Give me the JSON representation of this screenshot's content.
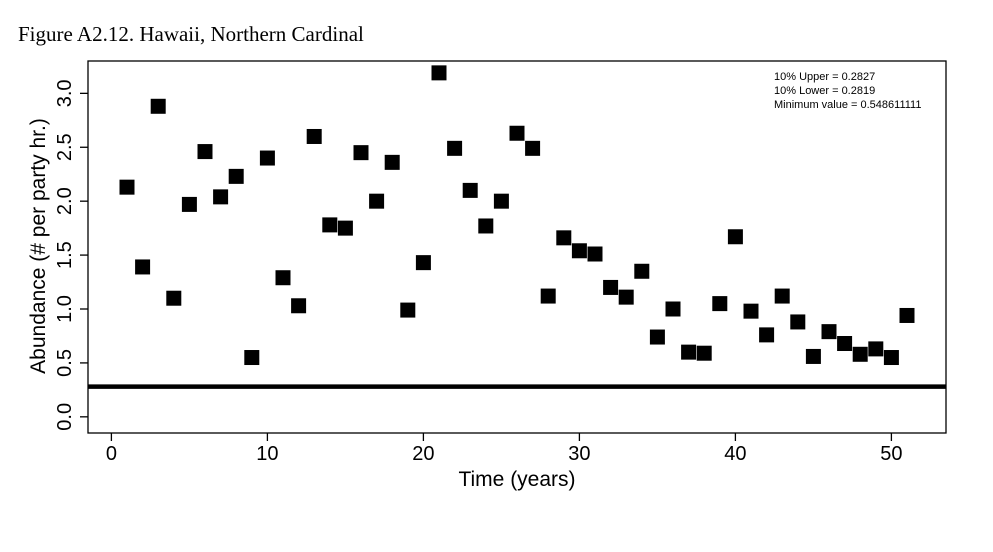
{
  "figure": {
    "title": "Figure A2.12. Hawaii, Northern Cardinal"
  },
  "chart_data": {
    "type": "scatter",
    "xlabel": "Time (years)",
    "ylabel": "Abundance (# per party hr.)",
    "xlim": [
      -1.5,
      53.5
    ],
    "ylim": [
      -0.15,
      3.3
    ],
    "x_ticks": [
      0,
      10,
      20,
      30,
      40,
      50
    ],
    "y_ticks": [
      0.0,
      0.5,
      1.0,
      1.5,
      2.0,
      2.5,
      3.0
    ],
    "x_tick_labels": [
      "0",
      "10",
      "20",
      "30",
      "40",
      "50"
    ],
    "y_tick_labels": [
      "0.0",
      "0.5",
      "1.0",
      "1.5",
      "2.0",
      "2.5",
      "3.0"
    ],
    "grid": false,
    "marker": "square",
    "marker_color": "#000000",
    "threshold_line": {
      "y": 0.28
    },
    "legend": {
      "placement": "top-right",
      "lines": [
        "10% Upper =  0.2827",
        "10% Lower =  0.2819",
        "Minimum value =  0.548611111"
      ]
    },
    "points": [
      {
        "x": 1,
        "y": 2.13
      },
      {
        "x": 2,
        "y": 1.39
      },
      {
        "x": 3,
        "y": 2.88
      },
      {
        "x": 4,
        "y": 1.1
      },
      {
        "x": 5,
        "y": 1.97
      },
      {
        "x": 6,
        "y": 2.46
      },
      {
        "x": 7,
        "y": 2.04
      },
      {
        "x": 8,
        "y": 2.23
      },
      {
        "x": 9,
        "y": 0.55
      },
      {
        "x": 10,
        "y": 2.4
      },
      {
        "x": 11,
        "y": 1.29
      },
      {
        "x": 12,
        "y": 1.03
      },
      {
        "x": 13,
        "y": 2.6
      },
      {
        "x": 14,
        "y": 1.78
      },
      {
        "x": 15,
        "y": 1.75
      },
      {
        "x": 16,
        "y": 2.45
      },
      {
        "x": 17,
        "y": 2.0
      },
      {
        "x": 18,
        "y": 2.36
      },
      {
        "x": 19,
        "y": 0.99
      },
      {
        "x": 20,
        "y": 1.43
      },
      {
        "x": 21,
        "y": 3.19
      },
      {
        "x": 22,
        "y": 2.49
      },
      {
        "x": 23,
        "y": 2.1
      },
      {
        "x": 24,
        "y": 1.77
      },
      {
        "x": 25,
        "y": 2.0
      },
      {
        "x": 26,
        "y": 2.63
      },
      {
        "x": 27,
        "y": 2.49
      },
      {
        "x": 28,
        "y": 1.12
      },
      {
        "x": 29,
        "y": 1.66
      },
      {
        "x": 30,
        "y": 1.54
      },
      {
        "x": 31,
        "y": 1.51
      },
      {
        "x": 32,
        "y": 1.2
      },
      {
        "x": 33,
        "y": 1.11
      },
      {
        "x": 34,
        "y": 1.35
      },
      {
        "x": 35,
        "y": 0.74
      },
      {
        "x": 36,
        "y": 1.0
      },
      {
        "x": 37,
        "y": 0.6
      },
      {
        "x": 38,
        "y": 0.59
      },
      {
        "x": 39,
        "y": 1.05
      },
      {
        "x": 40,
        "y": 1.67
      },
      {
        "x": 41,
        "y": 0.98
      },
      {
        "x": 42,
        "y": 0.76
      },
      {
        "x": 43,
        "y": 1.12
      },
      {
        "x": 44,
        "y": 0.88
      },
      {
        "x": 45,
        "y": 0.56
      },
      {
        "x": 46,
        "y": 0.79
      },
      {
        "x": 47,
        "y": 0.68
      },
      {
        "x": 48,
        "y": 0.58
      },
      {
        "x": 49,
        "y": 0.63
      },
      {
        "x": 50,
        "y": 0.55
      },
      {
        "x": 51,
        "y": 0.94
      }
    ]
  }
}
